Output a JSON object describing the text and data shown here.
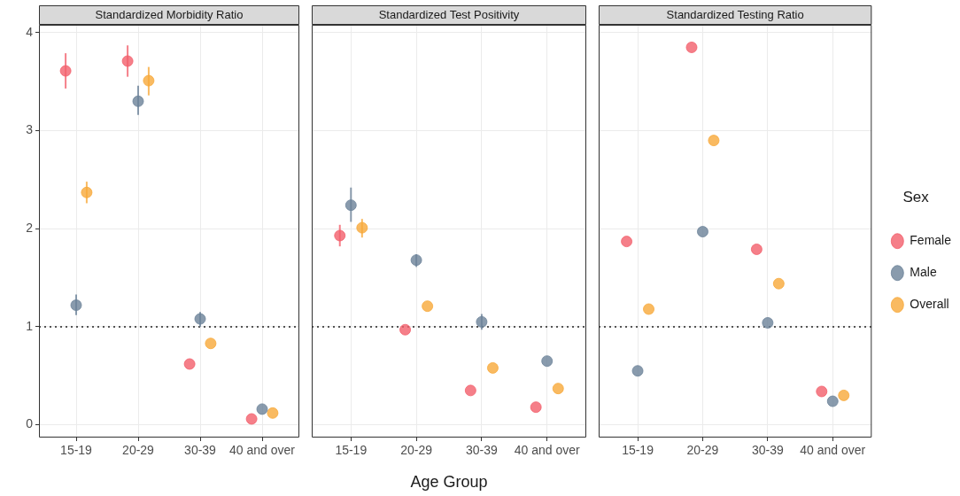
{
  "chart_data": [
    {
      "type": "scatter",
      "title": "Standardized Morbidity Ratio",
      "categories": [
        "15-19",
        "20-29",
        "30-39",
        "40 and over"
      ],
      "ylim": [
        -0.13,
        4.08
      ],
      "yticks": [
        0,
        1,
        2,
        3,
        4
      ],
      "grid": true,
      "marker": "circle",
      "legend": false,
      "ref_lines": [
        {
          "axis": "y",
          "value": 1,
          "line_style": "dotted",
          "color": "#555555"
        }
      ],
      "series": [
        {
          "color": "#f35f6b",
          "values": [
            3.61,
            3.71,
            0.62,
            0.06
          ],
          "errors": [
            [
              3.43,
              3.79
            ],
            [
              3.55,
              3.87
            ],
            null,
            null
          ]
        },
        {
          "color": "#6b8299",
          "values": [
            1.22,
            3.3,
            1.08,
            0.16
          ],
          "errors": [
            [
              1.12,
              1.33
            ],
            [
              3.16,
              3.46
            ],
            [
              1.0,
              1.15
            ],
            null
          ]
        },
        {
          "color": "#f8a93a",
          "values": [
            2.37,
            3.51,
            0.83,
            0.12
          ],
          "errors": [
            [
              2.26,
              2.48
            ],
            [
              3.36,
              3.65
            ],
            null,
            null
          ]
        }
      ]
    },
    {
      "type": "scatter",
      "title": "Standardized Test Positivity",
      "xlabel": "Age Group",
      "categories": [
        "15-19",
        "20-29",
        "30-39",
        "40 and over"
      ],
      "ylim": [
        -0.13,
        4.08
      ],
      "yticks": [
        0,
        1,
        2,
        3,
        4
      ],
      "tick_labels": "x",
      "grid": true,
      "marker": "circle",
      "legend": false,
      "ref_lines": [
        {
          "axis": "y",
          "value": 1,
          "line_style": "dotted",
          "color": "#555555"
        }
      ],
      "series": [
        {
          "color": "#f35f6b",
          "values": [
            1.93,
            0.97,
            0.35,
            0.18
          ],
          "errors": [
            [
              1.82,
              2.04
            ],
            null,
            null,
            null
          ]
        },
        {
          "color": "#6b8299",
          "values": [
            2.24,
            1.68,
            1.05,
            0.65
          ],
          "errors": [
            [
              2.07,
              2.42
            ],
            [
              1.61,
              1.74
            ],
            [
              0.97,
              1.13
            ],
            null
          ]
        },
        {
          "color": "#f8a93a",
          "values": [
            2.01,
            1.21,
            0.58,
            0.37
          ],
          "errors": [
            [
              1.91,
              2.1
            ],
            null,
            null,
            null
          ]
        }
      ]
    },
    {
      "type": "scatter",
      "title": "Standardized Testing Ratio",
      "legend_title": "Sex",
      "categories": [
        "15-19",
        "20-29",
        "30-39",
        "40 and over"
      ],
      "ylim": [
        -0.13,
        4.08
      ],
      "yticks": [
        0,
        1,
        2,
        3,
        4
      ],
      "tick_labels": "x",
      "grid": true,
      "marker": "circle",
      "legend": "right",
      "ref_lines": [
        {
          "axis": "y",
          "value": 1,
          "line_style": "dotted",
          "color": "#555555"
        }
      ],
      "series": [
        {
          "name": "Female",
          "color": "#f35f6b",
          "values": [
            1.87,
            3.85,
            1.79,
            0.34
          ]
        },
        {
          "name": "Male",
          "color": "#6b8299",
          "values": [
            0.55,
            1.97,
            1.04,
            0.24
          ]
        },
        {
          "name": "Overall",
          "color": "#f8a93a",
          "values": [
            1.18,
            2.9,
            1.44,
            0.3
          ]
        }
      ]
    }
  ]
}
